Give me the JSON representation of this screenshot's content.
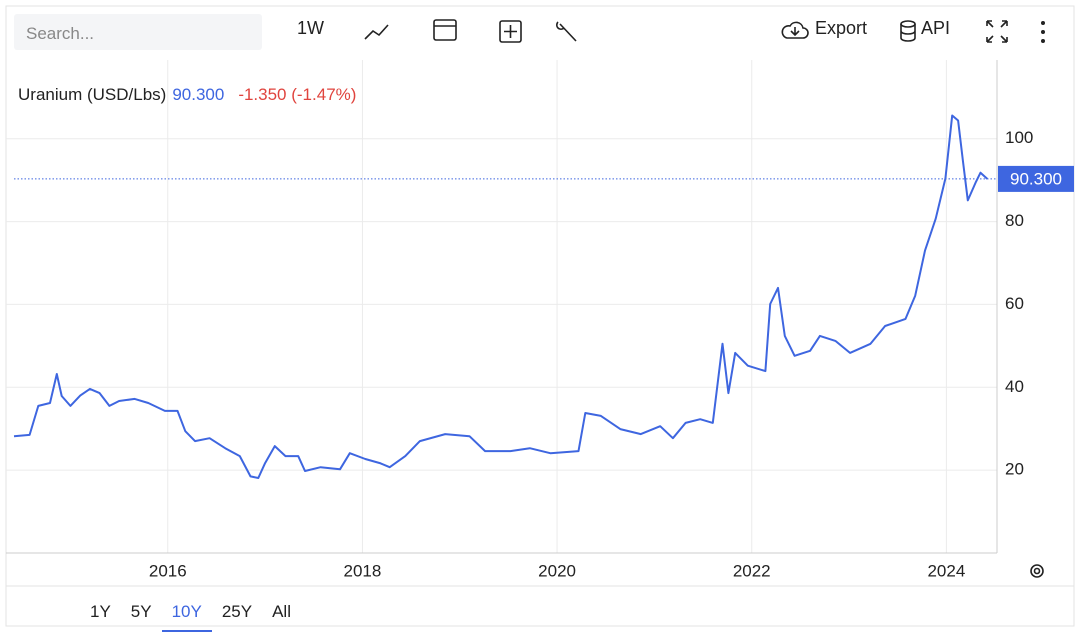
{
  "toolbar": {
    "search": "Search...",
    "interval": "1W",
    "export": "Export",
    "api": "API"
  },
  "ranges": [
    "1Y",
    "5Y",
    "10Y",
    "25Y",
    "All"
  ],
  "chart_data": {
    "type": "line",
    "legend": {
      "name": "Uranium (USD/Lbs)",
      "change": "-1.350 (-1.47%)"
    },
    "last": {
      "value": 90.3,
      "label": "90.300"
    },
    "x": [
      2014.42,
      2014.58,
      2014.67,
      2014.79,
      2014.86,
      2014.91,
      2015.0,
      2015.1,
      2015.2,
      2015.3,
      2015.4,
      2015.5,
      2015.66,
      2015.8,
      2015.97,
      2016.1,
      2016.18,
      2016.28,
      2016.43,
      2016.59,
      2016.74,
      2016.85,
      2016.93,
      2017.0,
      2017.1,
      2017.21,
      2017.34,
      2017.41,
      2017.57,
      2017.77,
      2017.87,
      2018.03,
      2018.18,
      2018.28,
      2018.44,
      2018.59,
      2018.85,
      2019.1,
      2019.26,
      2019.52,
      2019.72,
      2019.93,
      2020.22,
      2020.29,
      2020.45,
      2020.65,
      2020.86,
      2021.06,
      2021.19,
      2021.32,
      2021.47,
      2021.6,
      2021.7,
      2021.76,
      2021.83,
      2021.96,
      2022.14,
      2022.19,
      2022.27,
      2022.34,
      2022.44,
      2022.6,
      2022.7,
      2022.86,
      2023.01,
      2023.22,
      2023.37,
      2023.58,
      2023.68,
      2023.78,
      2023.89,
      2023.99,
      2024.06,
      2024.12,
      2024.17,
      2024.22,
      2024.3,
      2024.35,
      2024.42
    ],
    "series": [
      {
        "name": "Uranium (USD/Lbs)",
        "color": "#3e66e0",
        "values": [
          28.2,
          28.5,
          35.5,
          36.2,
          43.2,
          37.9,
          35.5,
          38,
          39.6,
          38.6,
          35.5,
          36.7,
          37.2,
          36.2,
          34.3,
          34.3,
          29.4,
          27,
          27.7,
          25.3,
          23.4,
          18.5,
          18.1,
          21.7,
          25.8,
          23.4,
          23.4,
          19.8,
          20.7,
          20.2,
          24.1,
          22.7,
          21.7,
          20.7,
          23.4,
          27,
          28.7,
          28.2,
          24.6,
          24.6,
          25.3,
          24.1,
          24.6,
          33.8,
          33.1,
          29.9,
          28.7,
          30.6,
          27.7,
          31.4,
          32.3,
          31.4,
          50.5,
          38.6,
          48.3,
          45.2,
          43.9,
          60.1,
          64,
          52.4,
          47.6,
          48.8,
          52.4,
          51.2,
          48.3,
          50.5,
          54.8,
          56.5,
          62.1,
          73,
          80.7,
          90.4,
          105.6,
          104.4,
          94.7,
          85.1,
          89.4,
          91.8,
          90.3
        ]
      }
    ],
    "xlim": [
      2014.42,
      2024.52
    ],
    "xticks": [
      2016,
      2018,
      2020,
      2022,
      2024
    ],
    "ylim": [
      0,
      119
    ],
    "yticks": [
      20,
      40,
      60,
      80,
      100
    ],
    "grid": true
  }
}
